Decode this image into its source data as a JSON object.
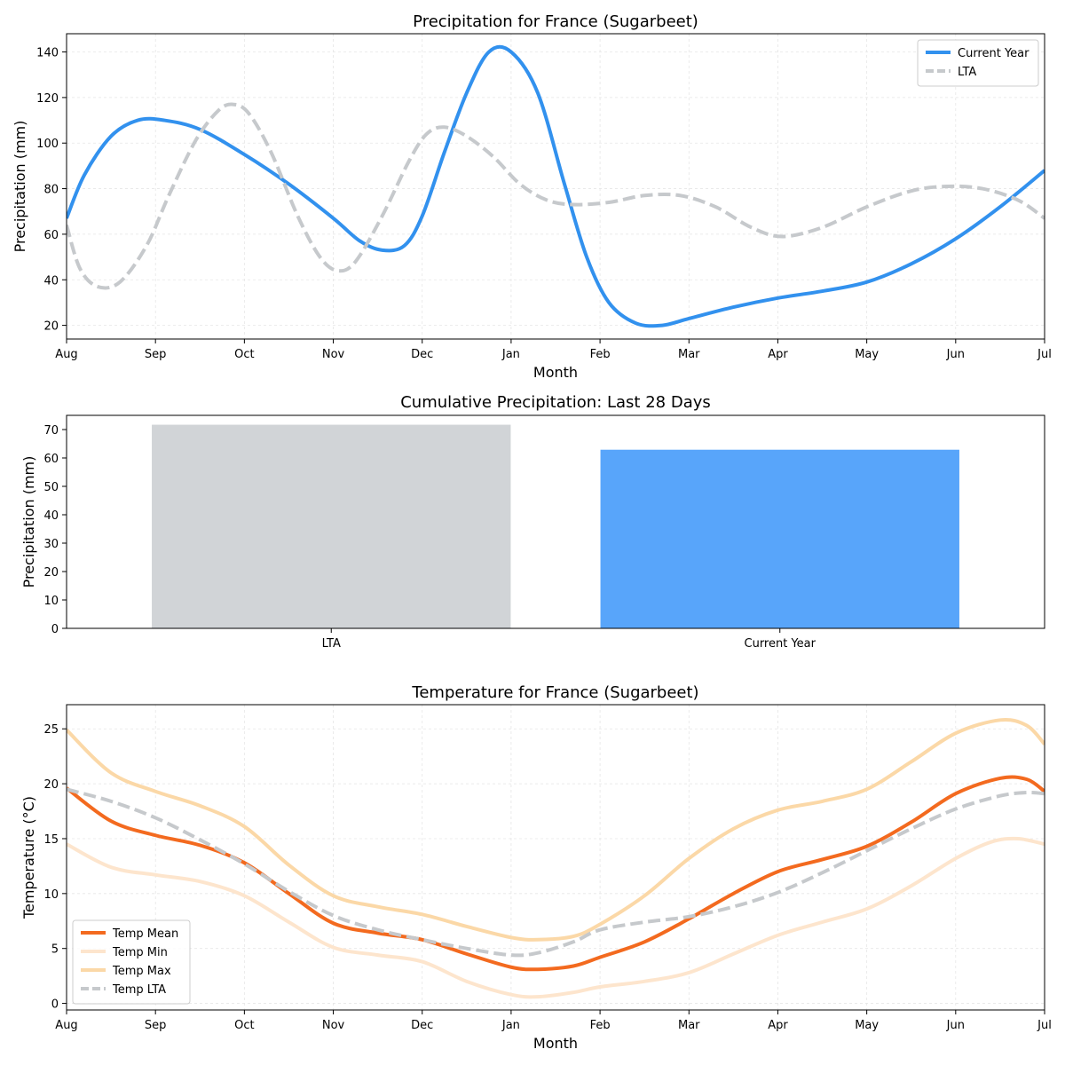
{
  "chart_data": [
    {
      "type": "line",
      "title": "Precipitation for France (Sugarbeet)",
      "xlabel": "Month",
      "ylabel": "Precipitation (mm)",
      "categories": [
        "Aug",
        "Sep",
        "Oct",
        "Nov",
        "Dec",
        "Jan",
        "Feb",
        "Mar",
        "Apr",
        "May",
        "Jun",
        "Jul"
      ],
      "xlim": [
        0,
        11
      ],
      "ylim": [
        14,
        148
      ],
      "yticks": [
        20,
        40,
        60,
        80,
        100,
        120,
        140
      ],
      "grid": true,
      "legend_position": "top-right",
      "series": [
        {
          "name": "Current Year",
          "color": "#3291ee",
          "dash": "solid",
          "points": [
            [
              0,
              67
            ],
            [
              0.2,
              86
            ],
            [
              0.5,
              103
            ],
            [
              0.8,
              110
            ],
            [
              1.1,
              110
            ],
            [
              1.5,
              106
            ],
            [
              2,
              95
            ],
            [
              2.5,
              82
            ],
            [
              3,
              67
            ],
            [
              3.3,
              57
            ],
            [
              3.55,
              53
            ],
            [
              3.8,
              55
            ],
            [
              4,
              68
            ],
            [
              4.25,
              96
            ],
            [
              4.5,
              122
            ],
            [
              4.75,
              140
            ],
            [
              5,
              140
            ],
            [
              5.3,
              122
            ],
            [
              5.6,
              82
            ],
            [
              5.85,
              50
            ],
            [
              6.1,
              30
            ],
            [
              6.4,
              21
            ],
            [
              6.7,
              20
            ],
            [
              7,
              23
            ],
            [
              7.5,
              28
            ],
            [
              8,
              32
            ],
            [
              8.5,
              35
            ],
            [
              9,
              39
            ],
            [
              9.5,
              47
            ],
            [
              10,
              58
            ],
            [
              10.5,
              72
            ],
            [
              11,
              88
            ]
          ]
        },
        {
          "name": "LTA",
          "color": "#c6c9cc",
          "dash": "dashed",
          "points": [
            [
              0,
              64
            ],
            [
              0.15,
              45
            ],
            [
              0.35,
              37
            ],
            [
              0.6,
              39
            ],
            [
              0.9,
              55
            ],
            [
              1.15,
              77
            ],
            [
              1.45,
              101
            ],
            [
              1.7,
              114
            ],
            [
              1.87,
              117
            ],
            [
              2.05,
              113
            ],
            [
              2.3,
              96
            ],
            [
              2.6,
              68
            ],
            [
              2.85,
              50
            ],
            [
              3.05,
              44
            ],
            [
              3.25,
              48
            ],
            [
              3.55,
              68
            ],
            [
              3.85,
              92
            ],
            [
              4.05,
              104
            ],
            [
              4.25,
              107
            ],
            [
              4.5,
              103
            ],
            [
              4.8,
              94
            ],
            [
              5.1,
              82
            ],
            [
              5.4,
              75
            ],
            [
              5.7,
              73
            ],
            [
              6.1,
              74
            ],
            [
              6.5,
              77
            ],
            [
              6.9,
              77
            ],
            [
              7.3,
              72
            ],
            [
              7.7,
              63
            ],
            [
              8.05,
              59
            ],
            [
              8.5,
              63
            ],
            [
              9,
              72
            ],
            [
              9.5,
              79
            ],
            [
              9.9,
              81
            ],
            [
              10.3,
              80
            ],
            [
              10.7,
              75
            ],
            [
              11,
              67
            ]
          ]
        }
      ]
    },
    {
      "type": "bar",
      "title": "Cumulative Precipitation: Last 28 Days",
      "ylabel": "Precipitation (mm)",
      "categories": [
        "LTA",
        "Current Year"
      ],
      "values": [
        71.7,
        62.9
      ],
      "colors": [
        "#d1d4d7",
        "#58a5fa"
      ],
      "ylim": [
        0,
        75
      ],
      "yticks": [
        0,
        10,
        20,
        30,
        40,
        50,
        60,
        70
      ],
      "grid": false
    },
    {
      "type": "line",
      "title": "Temperature for France (Sugarbeet)",
      "xlabel": "Month",
      "ylabel": "Temperature (°C)",
      "categories": [
        "Aug",
        "Sep",
        "Oct",
        "Nov",
        "Dec",
        "Jan",
        "Feb",
        "Mar",
        "Apr",
        "May",
        "Jun",
        "Jul"
      ],
      "xlim": [
        0,
        11
      ],
      "ylim": [
        -0.6,
        27.2
      ],
      "yticks": [
        0,
        5,
        10,
        15,
        20,
        25
      ],
      "grid": true,
      "legend_position": "bottom-left",
      "series": [
        {
          "name": "Temp Mean",
          "color": "#f36a1f",
          "dash": "solid",
          "points": [
            [
              0,
              19.6
            ],
            [
              0.5,
              16.6
            ],
            [
              1,
              15.3
            ],
            [
              1.5,
              14.4
            ],
            [
              2,
              12.8
            ],
            [
              2.5,
              10
            ],
            [
              3,
              7.3
            ],
            [
              3.5,
              6.4
            ],
            [
              4,
              5.8
            ],
            [
              4.5,
              4.5
            ],
            [
              5,
              3.3
            ],
            [
              5.3,
              3.1
            ],
            [
              5.7,
              3.4
            ],
            [
              6,
              4.2
            ],
            [
              6.5,
              5.6
            ],
            [
              7,
              7.7
            ],
            [
              7.5,
              10
            ],
            [
              8,
              12
            ],
            [
              8.5,
              13.1
            ],
            [
              9,
              14.3
            ],
            [
              9.5,
              16.5
            ],
            [
              10,
              19.1
            ],
            [
              10.5,
              20.5
            ],
            [
              10.8,
              20.4
            ],
            [
              11,
              19.3
            ]
          ]
        },
        {
          "name": "Temp Min",
          "color": "#fde5cd",
          "dash": "solid",
          "points": [
            [
              0,
              14.5
            ],
            [
              0.5,
              12.4
            ],
            [
              1,
              11.7
            ],
            [
              1.5,
              11.1
            ],
            [
              2,
              9.8
            ],
            [
              2.5,
              7.4
            ],
            [
              3,
              5.1
            ],
            [
              3.5,
              4.4
            ],
            [
              4,
              3.8
            ],
            [
              4.5,
              2
            ],
            [
              5,
              0.8
            ],
            [
              5.3,
              0.6
            ],
            [
              5.7,
              1
            ],
            [
              6,
              1.5
            ],
            [
              6.5,
              2
            ],
            [
              7,
              2.8
            ],
            [
              7.5,
              4.5
            ],
            [
              8,
              6.2
            ],
            [
              8.5,
              7.4
            ],
            [
              9,
              8.6
            ],
            [
              9.5,
              10.7
            ],
            [
              10,
              13.2
            ],
            [
              10.4,
              14.7
            ],
            [
              10.7,
              15
            ],
            [
              11,
              14.5
            ]
          ]
        },
        {
          "name": "Temp Max",
          "color": "#fbd8a7",
          "dash": "solid",
          "points": [
            [
              0,
              24.9
            ],
            [
              0.5,
              21
            ],
            [
              1,
              19.3
            ],
            [
              1.5,
              18
            ],
            [
              2,
              16.1
            ],
            [
              2.5,
              12.6
            ],
            [
              3,
              9.8
            ],
            [
              3.5,
              8.8
            ],
            [
              4,
              8.1
            ],
            [
              4.5,
              7
            ],
            [
              5,
              6
            ],
            [
              5.3,
              5.8
            ],
            [
              5.7,
              6.1
            ],
            [
              6,
              7.2
            ],
            [
              6.5,
              9.8
            ],
            [
              7,
              13.2
            ],
            [
              7.5,
              15.9
            ],
            [
              8,
              17.6
            ],
            [
              8.5,
              18.4
            ],
            [
              9,
              19.5
            ],
            [
              9.5,
              22
            ],
            [
              10,
              24.6
            ],
            [
              10.5,
              25.8
            ],
            [
              10.8,
              25.3
            ],
            [
              11,
              23.6
            ]
          ]
        },
        {
          "name": "Temp LTA",
          "color": "#c6c9cc",
          "dash": "dashed",
          "points": [
            [
              0,
              19.5
            ],
            [
              0.5,
              18.4
            ],
            [
              1,
              16.9
            ],
            [
              1.5,
              14.9
            ],
            [
              2,
              12.7
            ],
            [
              2.5,
              10.2
            ],
            [
              3,
              8
            ],
            [
              3.5,
              6.7
            ],
            [
              4,
              5.8
            ],
            [
              4.5,
              5
            ],
            [
              5,
              4.4
            ],
            [
              5.3,
              4.6
            ],
            [
              5.7,
              5.6
            ],
            [
              6,
              6.7
            ],
            [
              6.5,
              7.4
            ],
            [
              7,
              7.9
            ],
            [
              7.5,
              8.8
            ],
            [
              8,
              10.1
            ],
            [
              8.5,
              11.9
            ],
            [
              9,
              13.9
            ],
            [
              9.5,
              15.9
            ],
            [
              10,
              17.7
            ],
            [
              10.5,
              18.9
            ],
            [
              10.8,
              19.2
            ],
            [
              11,
              19.1
            ]
          ]
        }
      ]
    }
  ]
}
